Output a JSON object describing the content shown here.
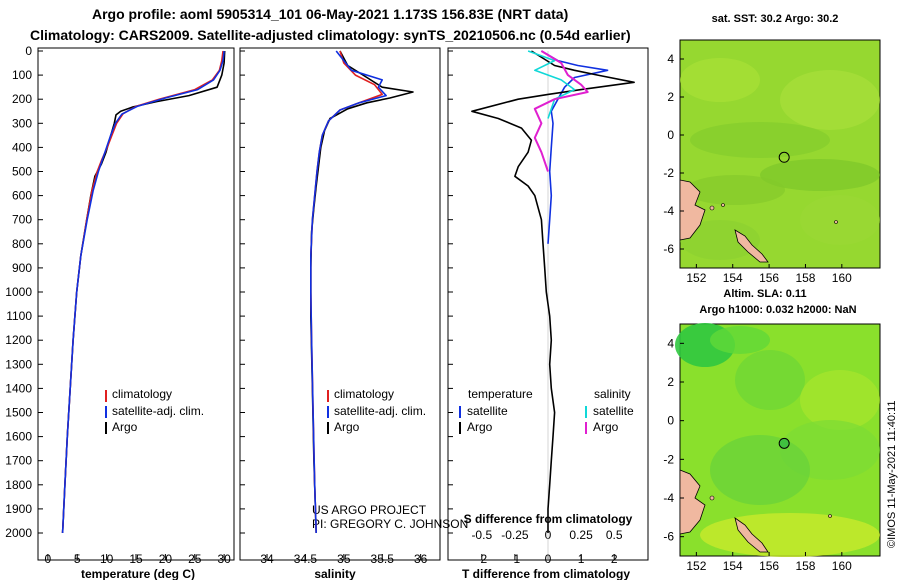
{
  "header": {
    "line1": "Argo profile: aoml 5905314_101 06-May-2021 1.173S 156.83E (NRT data)",
    "line2": "Climatology: CARS2009. Satellite-adjusted climatology: synTS_20210506.nc (0.54d earlier)"
  },
  "colors": {
    "climatology": "#e02020",
    "satellite": "#1030e0",
    "argo": "#000000",
    "sal_satellite": "#10d8d8",
    "sal_argo": "#e020d0",
    "map_green": "#8ad62a",
    "land": "#f0b8a0"
  },
  "chart_data": [
    {
      "type": "line",
      "title": "",
      "xlabel": "temperature (deg C)",
      "ylabel": "",
      "xlim": [
        -1,
        31
      ],
      "ylim": [
        2060,
        0
      ],
      "xticks": [
        0,
        5,
        10,
        15,
        20,
        25,
        30
      ],
      "yticks": [
        0,
        100,
        200,
        300,
        400,
        500,
        600,
        700,
        800,
        900,
        1000,
        1100,
        1200,
        1300,
        1400,
        1500,
        1600,
        1700,
        1800,
        1900,
        2000
      ],
      "legend": [
        "climatology",
        "satellite-adj. clim.",
        "Argo"
      ],
      "series": [
        {
          "name": "climatology",
          "color": "climatology",
          "points": [
            [
              29.8,
              0
            ],
            [
              29.6,
              40
            ],
            [
              29.2,
              80
            ],
            [
              28.0,
              120
            ],
            [
              25.0,
              160
            ],
            [
              19.0,
              200
            ],
            [
              15.0,
              230
            ],
            [
              12.8,
              260
            ],
            [
              11.7,
              300
            ],
            [
              10.9,
              350
            ],
            [
              10.1,
              400
            ],
            [
              9.2,
              450
            ],
            [
              8.4,
              500
            ],
            [
              7.5,
              580
            ],
            [
              6.6,
              700
            ],
            [
              5.6,
              850
            ],
            [
              4.9,
              1000
            ],
            [
              4.3,
              1200
            ],
            [
              3.8,
              1400
            ],
            [
              3.3,
              1600
            ],
            [
              2.9,
              1800
            ],
            [
              2.5,
              2000
            ]
          ]
        },
        {
          "name": "satellite-adj. clim.",
          "color": "satellite",
          "points": [
            [
              30.0,
              0
            ],
            [
              29.8,
              40
            ],
            [
              29.3,
              80
            ],
            [
              28.2,
              120
            ],
            [
              25.5,
              160
            ],
            [
              20.0,
              195
            ],
            [
              15.2,
              230
            ],
            [
              12.6,
              262
            ],
            [
              11.5,
              300
            ],
            [
              10.7,
              350
            ],
            [
              10.0,
              400
            ],
            [
              9.3,
              450
            ],
            [
              8.6,
              500
            ],
            [
              7.7,
              580
            ],
            [
              6.7,
              700
            ],
            [
              5.6,
              850
            ],
            [
              4.9,
              1000
            ],
            [
              4.3,
              1200
            ],
            [
              3.8,
              1400
            ],
            [
              3.3,
              1600
            ],
            [
              2.9,
              1800
            ],
            [
              2.5,
              2000
            ]
          ]
        },
        {
          "name": "Argo",
          "color": "argo",
          "points": [
            [
              30.1,
              0
            ],
            [
              30.0,
              50
            ],
            [
              29.6,
              100
            ],
            [
              28.8,
              150
            ],
            [
              24.0,
              185
            ],
            [
              18.5,
              210
            ],
            [
              14.5,
              232
            ],
            [
              12.4,
              250
            ],
            [
              11.6,
              265
            ],
            [
              11.3,
              300
            ],
            [
              10.6,
              360
            ],
            [
              9.9,
              420
            ],
            [
              9.1,
              470
            ],
            [
              8.0,
              520
            ],
            [
              7.3,
              600
            ],
            [
              6.6,
              700
            ],
            [
              5.6,
              850
            ],
            [
              4.9,
              1000
            ],
            [
              4.3,
              1200
            ],
            [
              3.8,
              1400
            ],
            [
              3.3,
              1600
            ],
            [
              2.9,
              1800
            ],
            [
              2.5,
              2000
            ]
          ]
        }
      ]
    },
    {
      "type": "line",
      "xlabel": "salinity",
      "xlim": [
        33.7,
        36.2
      ],
      "ylim": [
        2060,
        0
      ],
      "xticks": [
        34,
        34.5,
        35,
        35.5,
        36
      ],
      "xticklabels": [
        "34",
        "34.5",
        "35",
        "35.5",
        "36"
      ],
      "legend": [
        "climatology",
        "satellite-adj. clim.",
        "Argo"
      ],
      "series": [
        {
          "name": "climatology",
          "color": "climatology",
          "points": [
            [
              34.95,
              0
            ],
            [
              35.0,
              50
            ],
            [
              35.15,
              100
            ],
            [
              35.4,
              140
            ],
            [
              35.5,
              180
            ],
            [
              35.2,
              215
            ],
            [
              34.95,
              245
            ],
            [
              34.8,
              290
            ],
            [
              34.72,
              350
            ],
            [
              34.68,
              420
            ],
            [
              34.65,
              500
            ],
            [
              34.62,
              600
            ],
            [
              34.59,
              700
            ],
            [
              34.57,
              850
            ],
            [
              34.57,
              1000
            ],
            [
              34.58,
              1200
            ],
            [
              34.6,
              1500
            ],
            [
              34.62,
              1800
            ],
            [
              34.64,
              2000
            ]
          ]
        },
        {
          "name": "satellite-adj. clim.",
          "color": "satellite",
          "points": [
            [
              34.9,
              0
            ],
            [
              35.0,
              40
            ],
            [
              35.1,
              80
            ],
            [
              35.5,
              120
            ],
            [
              35.45,
              150
            ],
            [
              35.55,
              185
            ],
            [
              35.2,
              215
            ],
            [
              34.95,
              245
            ],
            [
              34.8,
              290
            ],
            [
              34.72,
              350
            ],
            [
              34.68,
              420
            ],
            [
              34.65,
              500
            ],
            [
              34.62,
              600
            ],
            [
              34.59,
              700
            ],
            [
              34.57,
              850
            ],
            [
              34.57,
              1000
            ],
            [
              34.58,
              1200
            ],
            [
              34.6,
              1500
            ],
            [
              34.62,
              1800
            ],
            [
              34.64,
              2000
            ]
          ]
        },
        {
          "name": "Argo",
          "color": "argo",
          "points": [
            [
              34.95,
              0
            ],
            [
              35.05,
              60
            ],
            [
              35.3,
              110
            ],
            [
              35.5,
              150
            ],
            [
              35.9,
              170
            ],
            [
              35.6,
              195
            ],
            [
              35.3,
              215
            ],
            [
              35.05,
              240
            ],
            [
              34.82,
              280
            ],
            [
              34.75,
              330
            ],
            [
              34.7,
              400
            ],
            [
              34.67,
              480
            ],
            [
              34.64,
              560
            ],
            [
              34.61,
              650
            ],
            [
              34.58,
              750
            ],
            [
              34.57,
              900
            ],
            [
              34.57,
              1100
            ],
            [
              34.59,
              1400
            ],
            [
              34.61,
              1700
            ],
            [
              34.64,
              2000
            ]
          ]
        }
      ]
    },
    {
      "type": "line",
      "xlabel": "T difference from climatology",
      "xlim": [
        -2.9,
        2.9
      ],
      "ylim": [
        2060,
        0
      ],
      "xticks": [
        -2,
        -1,
        0,
        1,
        2
      ],
      "secondary_axis": {
        "label": "S difference from climatology",
        "xlim": [
          -0.725,
          0.725
        ],
        "xticks": [
          -0.5,
          -0.25,
          0,
          0.25,
          0.5
        ],
        "xticklabels": [
          "-0.5",
          "-0.25",
          "0",
          "0.25",
          "0.5"
        ]
      },
      "legend_temperature": {
        "title": "temperature",
        "items": [
          "satellite",
          "Argo"
        ]
      },
      "legend_salinity": {
        "title": "salinity",
        "items": [
          "satellite",
          "Argo"
        ]
      },
      "series": [
        {
          "name": "temperature satellite",
          "color": "satellite",
          "points": [
            [
              -0.2,
              0
            ],
            [
              0.3,
              40
            ],
            [
              0.9,
              60
            ],
            [
              1.8,
              80
            ],
            [
              0.8,
              110
            ],
            [
              0.5,
              150
            ],
            [
              0.3,
              200
            ],
            [
              0.1,
              250
            ],
            [
              0.15,
              300
            ],
            [
              0.1,
              400
            ],
            [
              0.05,
              500
            ],
            [
              0.1,
              600
            ],
            [
              0.05,
              700
            ],
            [
              0.0,
              800
            ]
          ]
        },
        {
          "name": "temperature Argo",
          "color": "argo",
          "points": [
            [
              -0.5,
              0
            ],
            [
              0.2,
              60
            ],
            [
              0.8,
              80
            ],
            [
              1.5,
              100
            ],
            [
              2.6,
              130
            ],
            [
              1.0,
              160
            ],
            [
              0.0,
              180
            ],
            [
              -0.9,
              200
            ],
            [
              -2.3,
              250
            ],
            [
              -1.5,
              280
            ],
            [
              -0.8,
              320
            ],
            [
              -0.5,
              370
            ],
            [
              -0.6,
              420
            ],
            [
              -0.9,
              480
            ],
            [
              -1.0,
              520
            ],
            [
              -0.6,
              560
            ],
            [
              -0.4,
              600
            ],
            [
              -0.3,
              650
            ],
            [
              -0.2,
              700
            ],
            [
              -0.15,
              800
            ],
            [
              -0.1,
              900
            ],
            [
              -0.05,
              1000
            ],
            [
              0.05,
              1100
            ],
            [
              0.1,
              1200
            ],
            [
              0.05,
              1300
            ],
            [
              0.1,
              1400
            ],
            [
              0.2,
              1500
            ],
            [
              0.15,
              1600
            ],
            [
              0.1,
              1700
            ],
            [
              0.05,
              1800
            ],
            [
              0.0,
              1900
            ],
            [
              0.0,
              2000
            ]
          ]
        },
        {
          "name": "salinity satellite",
          "color": "sal_satellite",
          "points": [
            [
              -0.15,
              0
            ],
            [
              0.05,
              40
            ],
            [
              -0.1,
              80
            ],
            [
              0.1,
              120
            ],
            [
              0.2,
              160
            ],
            [
              0.05,
              200
            ],
            [
              0.0,
              280
            ]
          ]
        },
        {
          "name": "salinity Argo",
          "color": "sal_argo",
          "points": [
            [
              -0.05,
              0
            ],
            [
              0.1,
              50
            ],
            [
              0.15,
              100
            ],
            [
              0.25,
              140
            ],
            [
              0.3,
              170
            ],
            [
              0.05,
              200
            ],
            [
              -0.1,
              240
            ],
            [
              -0.05,
              300
            ],
            [
              -0.1,
              360
            ],
            [
              -0.05,
              420
            ],
            [
              0.0,
              500
            ]
          ]
        }
      ]
    }
  ],
  "footer_text": {
    "project": "US ARGO PROJECT",
    "pi": "PI: GREGORY C. JOHNSON"
  },
  "maps": {
    "sst_title": "sat. SST: 30.2 Argo: 30.2",
    "sla_title1": "Altim. SLA: 0.11",
    "sla_title2": "Argo h1000: 0.032 h2000: NaN",
    "xticks": [
      152,
      154,
      156,
      158,
      160
    ],
    "yticks": [
      4,
      2,
      0,
      -2,
      -4,
      -6
    ],
    "marker": {
      "lon": 156.83,
      "lat": -1.173
    },
    "lon_range": [
      151.1,
      162.1
    ],
    "lat_range": [
      -7.0,
      5.0
    ]
  },
  "imos_stamp": "©IMOS 11-May-2021 11:40:11"
}
